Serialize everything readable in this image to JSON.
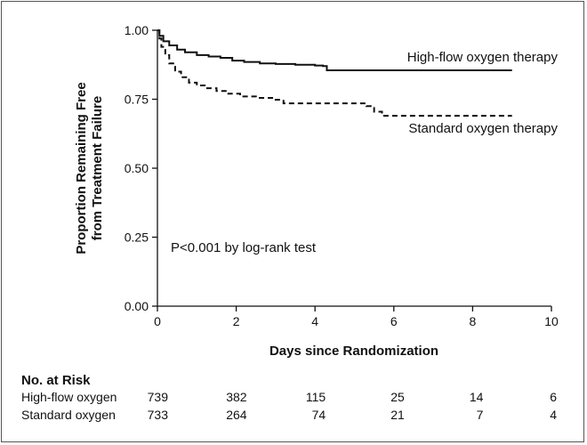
{
  "chart_data": {
    "type": "line",
    "subtype": "kaplan-meier",
    "xlabel": "Days since Randomization",
    "ylabel_line1": "Proportion Remaining Free",
    "ylabel_line2": "from Treatment Failure",
    "xlim": [
      0,
      10
    ],
    "ylim": [
      0,
      1
    ],
    "x_ticks": [
      0,
      2,
      4,
      6,
      8,
      10
    ],
    "x_tick_labels": [
      "0",
      "2",
      "4",
      "6",
      "8",
      "10"
    ],
    "y_ticks": [
      0,
      0.25,
      0.5,
      0.75,
      1.0
    ],
    "y_tick_labels": [
      "0.00",
      "0.25",
      "0.50",
      "0.75",
      "1.00"
    ],
    "annotation": "P<0.001 by log-rank test",
    "series": [
      {
        "name": "High-flow oxygen therapy",
        "style": "solid",
        "x": [
          0,
          0.05,
          0.15,
          0.3,
          0.5,
          0.7,
          1.0,
          1.3,
          1.6,
          1.9,
          2.2,
          2.6,
          3.0,
          3.5,
          4.0,
          4.2,
          4.3,
          5.0,
          6.0,
          7.0,
          8.0,
          9.0
        ],
        "y": [
          1.0,
          0.98,
          0.96,
          0.945,
          0.93,
          0.92,
          0.91,
          0.905,
          0.9,
          0.89,
          0.885,
          0.88,
          0.878,
          0.875,
          0.872,
          0.87,
          0.855,
          0.855,
          0.855,
          0.855,
          0.855,
          0.855
        ]
      },
      {
        "name": "Standard oxygen therapy",
        "style": "dashed",
        "x": [
          0,
          0.05,
          0.1,
          0.2,
          0.3,
          0.45,
          0.6,
          0.8,
          1.0,
          1.2,
          1.5,
          1.8,
          2.1,
          2.5,
          3.0,
          3.2,
          4.0,
          5.3,
          5.5,
          5.7,
          6.0,
          7.0,
          8.0,
          9.0
        ],
        "y": [
          1.0,
          0.97,
          0.94,
          0.91,
          0.88,
          0.85,
          0.83,
          0.81,
          0.8,
          0.79,
          0.78,
          0.77,
          0.76,
          0.755,
          0.748,
          0.735,
          0.735,
          0.725,
          0.705,
          0.69,
          0.69,
          0.69,
          0.69,
          0.69
        ]
      }
    ]
  },
  "risk_table": {
    "heading": "No. at Risk",
    "rows": [
      {
        "label": "High-flow oxygen",
        "values": [
          "739",
          "382",
          "115",
          "25",
          "14",
          "6"
        ]
      },
      {
        "label": "Standard oxygen",
        "values": [
          "733",
          "264",
          "74",
          "21",
          "7",
          "4"
        ]
      }
    ]
  }
}
